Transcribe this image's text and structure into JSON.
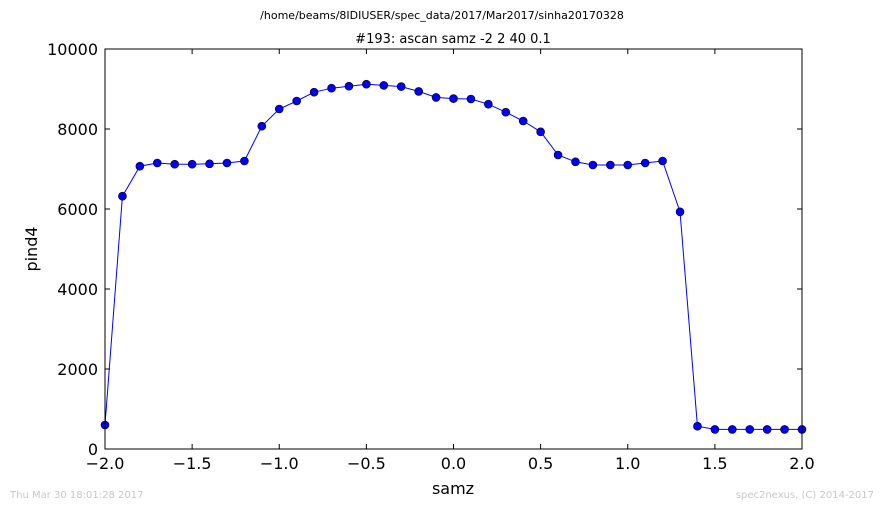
{
  "suptitle": "/home/beams/8IDIUSER/spec_data/2017/Mar2017/sinha20170328",
  "footer_left": "Thu Mar 30 18:01:28 2017",
  "footer_right": "spec2nexus, (C) 2014-2017",
  "colors": {
    "series": "#0000ff",
    "marker": "#0000ff",
    "axes": "#000000",
    "footer": "#c8c8c8"
  },
  "chart_data": {
    "type": "line",
    "title": "#193: ascan  samz -2 2  40 0.1",
    "xlabel": "samz",
    "ylabel": "pind4",
    "xlim": [
      -2.0,
      2.0
    ],
    "ylim": [
      0,
      10000
    ],
    "grid": false,
    "xticks": [
      -2.0,
      -1.5,
      -1.0,
      -0.5,
      0.0,
      0.5,
      1.0,
      1.5,
      2.0
    ],
    "xtick_labels": [
      "−2.0",
      "−1.5",
      "−1.0",
      "−0.5",
      "0.0",
      "0.5",
      "1.0",
      "1.5",
      "2.0"
    ],
    "yticks": [
      0,
      2000,
      4000,
      6000,
      8000,
      10000
    ],
    "ytick_labels": [
      "0",
      "2000",
      "4000",
      "6000",
      "8000",
      "10000"
    ],
    "x": [
      -2.0,
      -1.9,
      -1.8,
      -1.7,
      -1.6,
      -1.5,
      -1.4,
      -1.3,
      -1.2,
      -1.1,
      -1.0,
      -0.9,
      -0.8,
      -0.7,
      -0.6,
      -0.5,
      -0.4,
      -0.3,
      -0.2,
      -0.1,
      0.0,
      0.1,
      0.2,
      0.3,
      0.4,
      0.5,
      0.6,
      0.7,
      0.8,
      0.9,
      1.0,
      1.1,
      1.2,
      1.3,
      1.4,
      1.5,
      1.6,
      1.7,
      1.8,
      1.9,
      2.0
    ],
    "y": [
      600,
      6320,
      7070,
      7150,
      7120,
      7120,
      7130,
      7150,
      7200,
      8070,
      8500,
      8700,
      8920,
      9020,
      9070,
      9120,
      9090,
      9060,
      8940,
      8790,
      8760,
      8750,
      8620,
      8420,
      8200,
      7930,
      7350,
      7180,
      7100,
      7100,
      7100,
      7150,
      7200,
      5930,
      570,
      490,
      490,
      490,
      490,
      490,
      490
    ]
  }
}
